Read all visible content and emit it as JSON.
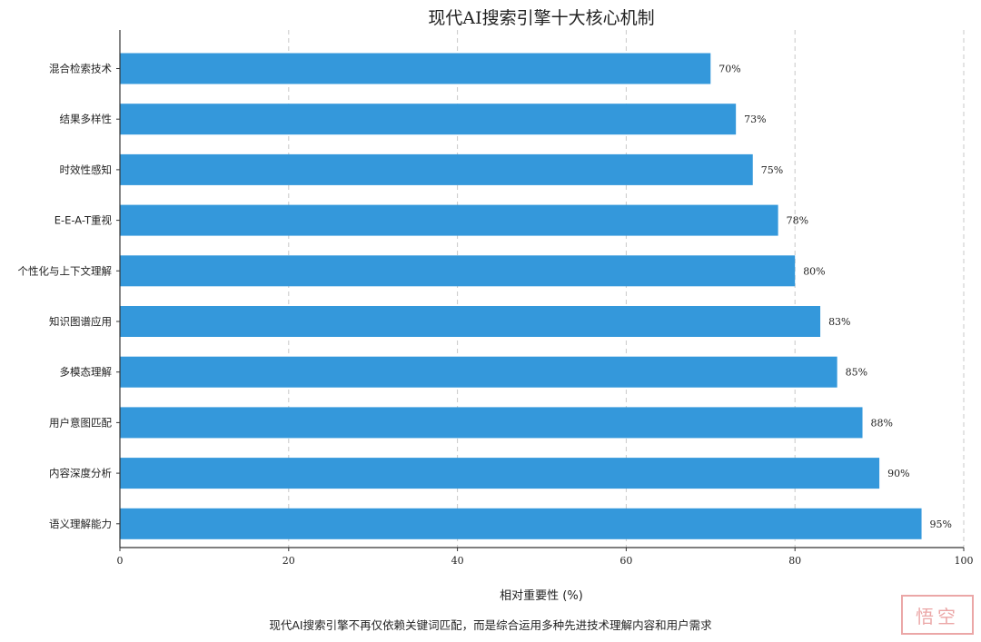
{
  "chart_data": {
    "type": "bar",
    "orientation": "horizontal",
    "title": "现代AI搜索引擎十大核心机制",
    "xlabel": "相对重要性 (%)",
    "ylabel": "",
    "xlim": [
      0,
      100
    ],
    "xticks": [
      0,
      20,
      40,
      60,
      80,
      100
    ],
    "grid": "x-dashed",
    "bar_color": "#3498db",
    "value_suffix": "%",
    "categories": [
      "混合检索技术",
      "结果多样性",
      "时效性感知",
      "E-E-A-T重视",
      "个性化与上下文理解",
      "知识图谱应用",
      "多模态理解",
      "用户意图匹配",
      "内容深度分析",
      "语义理解能力"
    ],
    "values": [
      70,
      73,
      75,
      78,
      80,
      83,
      85,
      88,
      90,
      95
    ],
    "caption": "现代AI搜索引擎不再仅依赖关键词匹配，而是综合运用多种先进技术理解内容和用户需求"
  }
}
